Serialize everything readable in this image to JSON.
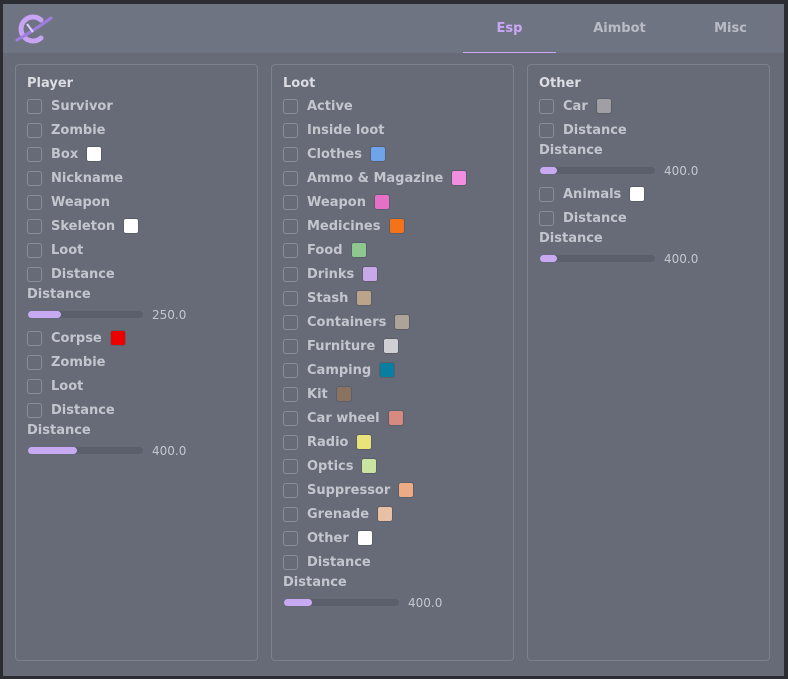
{
  "tabs": [
    "Esp",
    "Aimbot",
    "Misc"
  ],
  "panels": [
    {
      "title": "Player",
      "items": [
        {
          "label": "Survivor"
        },
        {
          "label": "Zombie"
        },
        {
          "label": "Box",
          "color": "#ffffff"
        },
        {
          "label": "Nickname"
        },
        {
          "label": "Weapon"
        },
        {
          "label": "Skeleton",
          "color": "#ffffff"
        },
        {
          "label": "Loot"
        },
        {
          "label": "Distance"
        },
        {
          "label": "Distance",
          "value": "250.0"
        },
        {
          "label": "Corpse",
          "color": "#ee0000"
        },
        {
          "label": "Zombie"
        },
        {
          "label": "Loot"
        },
        {
          "label": "Distance"
        },
        {
          "label": "Distance",
          "value": "400.0"
        }
      ]
    },
    {
      "title": "Loot",
      "items": [
        {
          "label": "Active"
        },
        {
          "label": "Inside loot"
        },
        {
          "label": "Clothes",
          "color": "#6ea4ea"
        },
        {
          "label": "Ammo & Magazine",
          "color": "#f28ee0"
        },
        {
          "label": "Weapon",
          "color": "#e670c8"
        },
        {
          "label": "Medicines",
          "color": "#f47218"
        },
        {
          "label": "Food",
          "color": "#8ec88e"
        },
        {
          "label": "Drinks",
          "color": "#c8a8e8"
        },
        {
          "label": "Stash",
          "color": "#bca48a"
        },
        {
          "label": "Containers",
          "color": "#aca498"
        },
        {
          "label": "Furniture",
          "color": "#d0d0d4"
        },
        {
          "label": "Camping",
          "color": "#0a7ea0"
        },
        {
          "label": "Kit",
          "color": "#8a7260"
        },
        {
          "label": "Car wheel",
          "color": "#d88a80"
        },
        {
          "label": "Radio",
          "color": "#e8e47a"
        },
        {
          "label": "Optics",
          "color": "#c8e4a0"
        },
        {
          "label": "Suppressor",
          "color": "#eeaa84"
        },
        {
          "label": "Grenade",
          "color": "#e8c0a4"
        },
        {
          "label": "Other",
          "color": "#ffffff"
        },
        {
          "label": "Distance"
        },
        {
          "label": "Distance",
          "value": "400.0"
        }
      ]
    },
    {
      "title": "Other",
      "items": [
        {
          "label": "Car",
          "color": "#a0a0a4"
        },
        {
          "label": "Distance"
        },
        {
          "label": "Distance",
          "value": "400.0"
        },
        {
          "label": "Animals",
          "color": "#ffffff"
        },
        {
          "label": "Distance"
        },
        {
          "label": "Distance",
          "value": "400.0"
        }
      ]
    }
  ]
}
